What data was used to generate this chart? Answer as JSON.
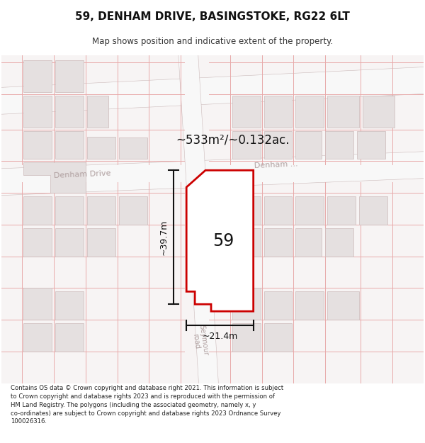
{
  "title": "59, DENHAM DRIVE, BASINGSTOKE, RG22 6LT",
  "subtitle": "Map shows position and indicative extent of the property.",
  "footer_line1": "Contains OS data © Crown copyright and database right 2021. This information is subject",
  "footer_line2": "to Crown copyright and database rights 2023 and is reproduced with the permission of",
  "footer_line3": "HM Land Registry. The polygons (including the associated geometry, namely x, y",
  "footer_line4": "co-ordinates) are subject to Crown copyright and database rights 2023 Ordnance Survey",
  "footer_line5": "100026316.",
  "area_label": "~533m²/~0.132ac.",
  "width_label": "~21.4m",
  "height_label": "~39.7m",
  "number_label": "59",
  "bg_color": "#f7f4f4",
  "road_fill": "#ffffff",
  "road_edge": "#ccbbbb",
  "building_fill": "#e5e0e0",
  "building_edge": "#ccbbbb",
  "plot_fill": "#ffffff",
  "plot_edge": "#cc0000",
  "cadastral_color": "#e8aaaa",
  "dim_color": "#111111",
  "street_color": "#b0a0a0",
  "fig_width": 6.0,
  "fig_height": 6.25
}
